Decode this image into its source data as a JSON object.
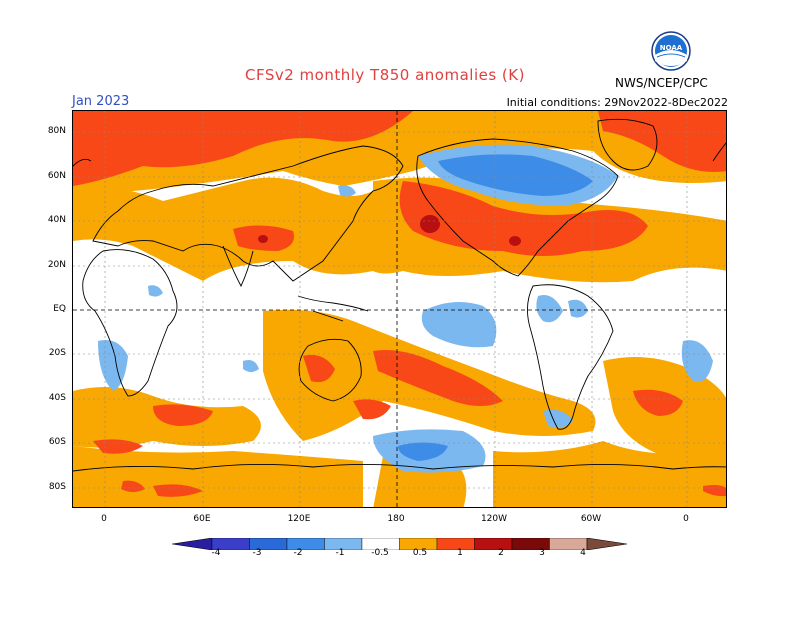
{
  "title": "CFSv2 monthly T850 anomalies (K)",
  "month_label": "Jan 2023",
  "initial_conditions": "Initial conditions: 29Nov2022-8Dec2022",
  "agency": "NWS/NCEP/CPC",
  "logo": {
    "icon": "noaa-logo",
    "text": "NOAA"
  },
  "colors": {
    "title": "#e04040",
    "month": "#3050c0"
  },
  "latitude_labels": [
    "80N",
    "60N",
    "40N",
    "20N",
    "EQ",
    "20S",
    "40S",
    "60S",
    "80S"
  ],
  "longitude_labels": [
    "0",
    "60E",
    "120E",
    "180",
    "120W",
    "60W",
    "0"
  ],
  "colorbar": {
    "labels": [
      "-4",
      "-3",
      "-2",
      "-1",
      "-0.5",
      "0.5",
      "1",
      "2",
      "3",
      "4"
    ],
    "bins": [
      {
        "color": "#2a1ea0"
      },
      {
        "color": "#3a3ec8"
      },
      {
        "color": "#2a6ad8"
      },
      {
        "color": "#3c8ce8"
      },
      {
        "color": "#7cb8f0"
      },
      {
        "color": "#ffffff"
      },
      {
        "color": "#f8a800"
      },
      {
        "color": "#f84818"
      },
      {
        "color": "#b81010"
      },
      {
        "color": "#7a0a0a"
      },
      {
        "color": "#d8a898"
      },
      {
        "color": "#7a4a3a"
      }
    ]
  }
}
